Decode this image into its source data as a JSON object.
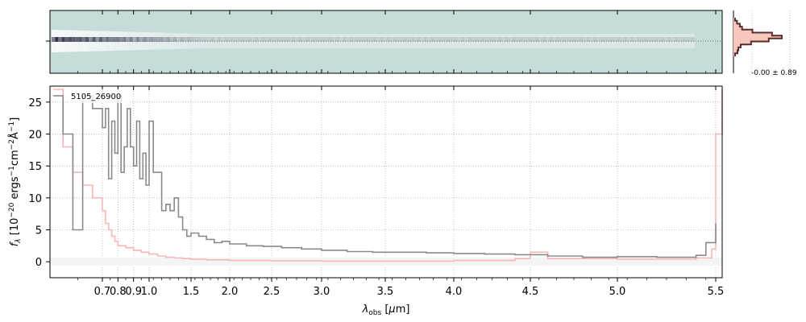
{
  "chart_data": [
    {
      "type": "heatmap",
      "panel": "2D spectrum",
      "description_colors": {
        "background": "#c5dcdb",
        "trace": "#262640"
      },
      "x_tick_labels": [],
      "y_tick_labels": []
    },
    {
      "type": "line",
      "panel": "cross-dispersion profile",
      "annotation": "-0.00 ± 0.89",
      "profile_y": [
        0.0,
        0.02,
        0.06,
        0.15,
        0.35,
        0.75,
        1.0,
        0.7,
        0.3,
        0.12,
        0.05,
        0.01,
        0.0
      ],
      "colors": {
        "line": "#5a2d2d",
        "fill": "#f7c6bd"
      }
    },
    {
      "type": "line",
      "panel": "1D spectrum",
      "annotation": "5105_26900",
      "xlabel": "λobs [μm]",
      "ylabel": "fλ [10⁻²⁰ ergs⁻¹cm⁻²Å⁻¹]",
      "x_scale": "reciprocal-like (pixel spaced)",
      "xlim": [
        0.6,
        5.52
      ],
      "ylim": [
        -2.5,
        27.5
      ],
      "x_tick_labels": [
        "0.7",
        "0.8",
        "0.9",
        "1.0",
        "1.5",
        "2.0",
        "2.5",
        "3.0",
        "3.5",
        "4.0",
        "4.5",
        "5.0",
        "5.5"
      ],
      "x_tick_values": [
        0.7,
        0.8,
        0.9,
        1.0,
        1.5,
        2.0,
        2.5,
        3.0,
        3.5,
        4.0,
        4.5,
        5.0,
        5.5
      ],
      "y_tick_labels": [
        "0",
        "5",
        "10",
        "15",
        "20",
        "25"
      ],
      "y_tick_values": [
        0,
        5,
        10,
        15,
        20,
        25
      ],
      "grid": true,
      "series": [
        {
          "color": "#8a8a8a",
          "x": [
            0.6,
            0.62,
            0.64,
            0.66,
            0.68,
            0.7,
            0.72,
            0.74,
            0.76,
            0.78,
            0.8,
            0.82,
            0.84,
            0.86,
            0.88,
            0.9,
            0.92,
            0.94,
            0.96,
            0.98,
            1.0,
            1.05,
            1.1,
            1.15,
            1.2,
            1.25,
            1.3,
            1.35,
            1.4,
            1.45,
            1.5,
            1.6,
            1.7,
            1.8,
            1.9,
            2.0,
            2.2,
            2.4,
            2.6,
            2.8,
            3.0,
            3.2,
            3.4,
            3.6,
            3.8,
            4.0,
            4.2,
            4.4,
            4.6,
            4.8,
            5.0,
            5.2,
            5.4,
            5.45,
            5.5
          ],
          "y": [
            26,
            20,
            5,
            26,
            24,
            21,
            24,
            13,
            22,
            17,
            26,
            14,
            18,
            24,
            18,
            15,
            22,
            13,
            17,
            12,
            22,
            14,
            14,
            8,
            9,
            8,
            10,
            7,
            5,
            4,
            4.5,
            4,
            3.5,
            3,
            3.2,
            2.8,
            2.5,
            2.4,
            2.2,
            2,
            1.8,
            1.6,
            1.5,
            1.5,
            1.4,
            1.3,
            1.2,
            1.1,
            0.9,
            0.7,
            0.8,
            0.7,
            1.0,
            3.0,
            6.0
          ]
        },
        {
          "color": "#f7b7b3",
          "x": [
            0.6,
            0.62,
            0.64,
            0.66,
            0.68,
            0.7,
            0.72,
            0.74,
            0.76,
            0.78,
            0.8,
            0.85,
            0.9,
            0.95,
            1.0,
            1.1,
            1.2,
            1.3,
            1.4,
            1.5,
            1.7,
            2.0,
            2.5,
            3.0,
            3.5,
            4.0,
            4.4,
            4.5,
            4.6,
            5.0,
            5.4,
            5.48,
            5.5,
            5.52
          ],
          "y": [
            27,
            18,
            14,
            12,
            10,
            8,
            6,
            5,
            4,
            3.2,
            2.5,
            2.2,
            1.8,
            1.5,
            1.2,
            0.9,
            0.7,
            0.6,
            0.5,
            0.4,
            0.3,
            0.2,
            0.15,
            0.1,
            0.1,
            0.2,
            0.5,
            1.5,
            0.5,
            0.4,
            0.6,
            2.0,
            20,
            27
          ]
        }
      ]
    }
  ]
}
